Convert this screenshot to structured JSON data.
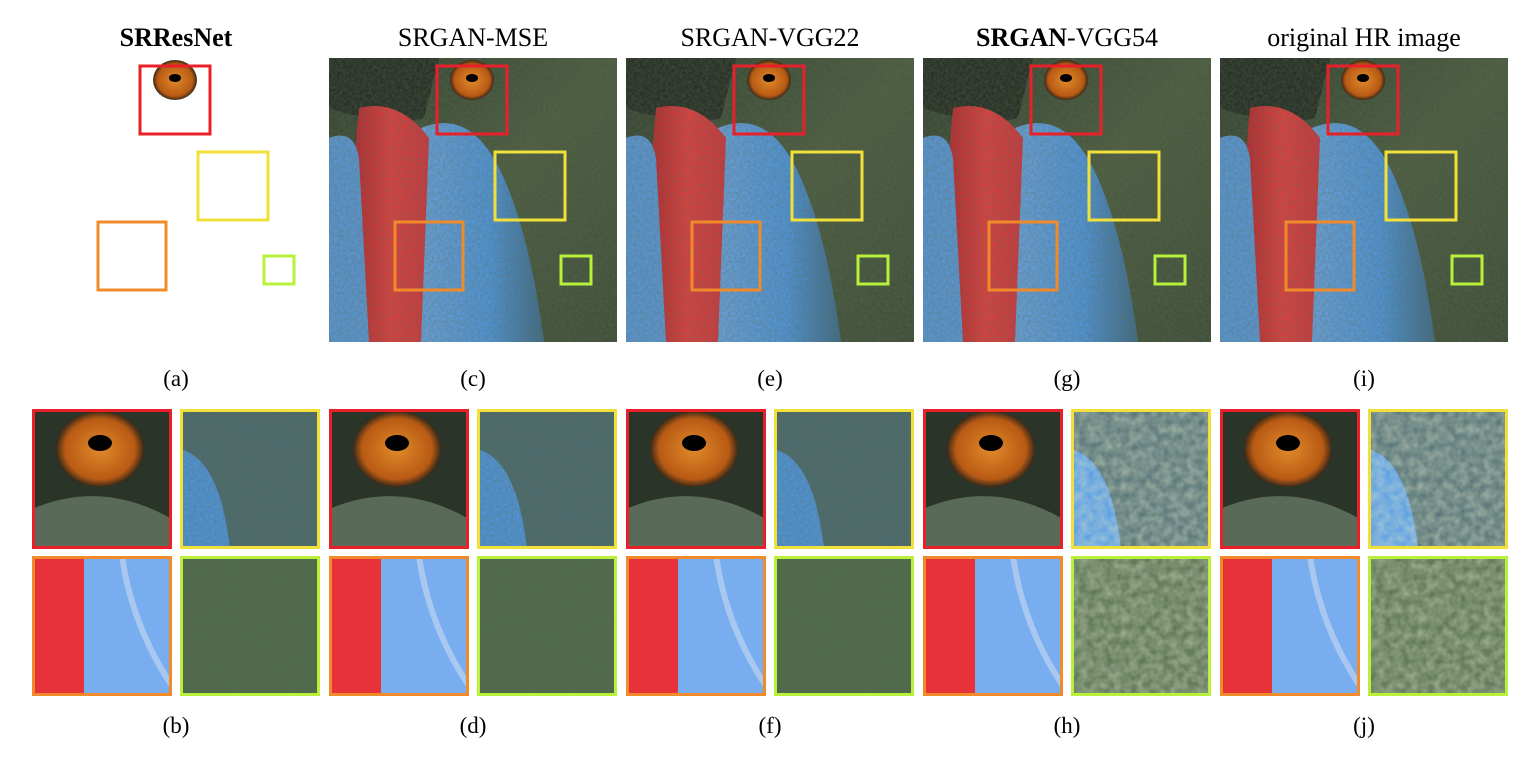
{
  "columns": [
    {
      "title_parts": [
        {
          "text": "SRResNet",
          "bold": true
        }
      ],
      "caption_full": "(a)",
      "caption_crops": "(b)"
    },
    {
      "title_parts": [
        {
          "text": "SRGAN-MSE",
          "bold": false
        }
      ],
      "caption_full": "(c)",
      "caption_crops": "(d)"
    },
    {
      "title_parts": [
        {
          "text": "SRGAN-VGG22",
          "bold": false
        }
      ],
      "caption_full": "(e)",
      "caption_crops": "(f)"
    },
    {
      "title_parts": [
        {
          "text": "SRGAN",
          "bold": true
        },
        {
          "text": "-VGG54",
          "bold": false
        }
      ],
      "caption_full": "(g)",
      "caption_crops": "(h)"
    },
    {
      "title_parts": [
        {
          "text": "original HR image",
          "bold": false
        }
      ],
      "caption_full": "(i)",
      "caption_crops": "(j)"
    }
  ]
}
